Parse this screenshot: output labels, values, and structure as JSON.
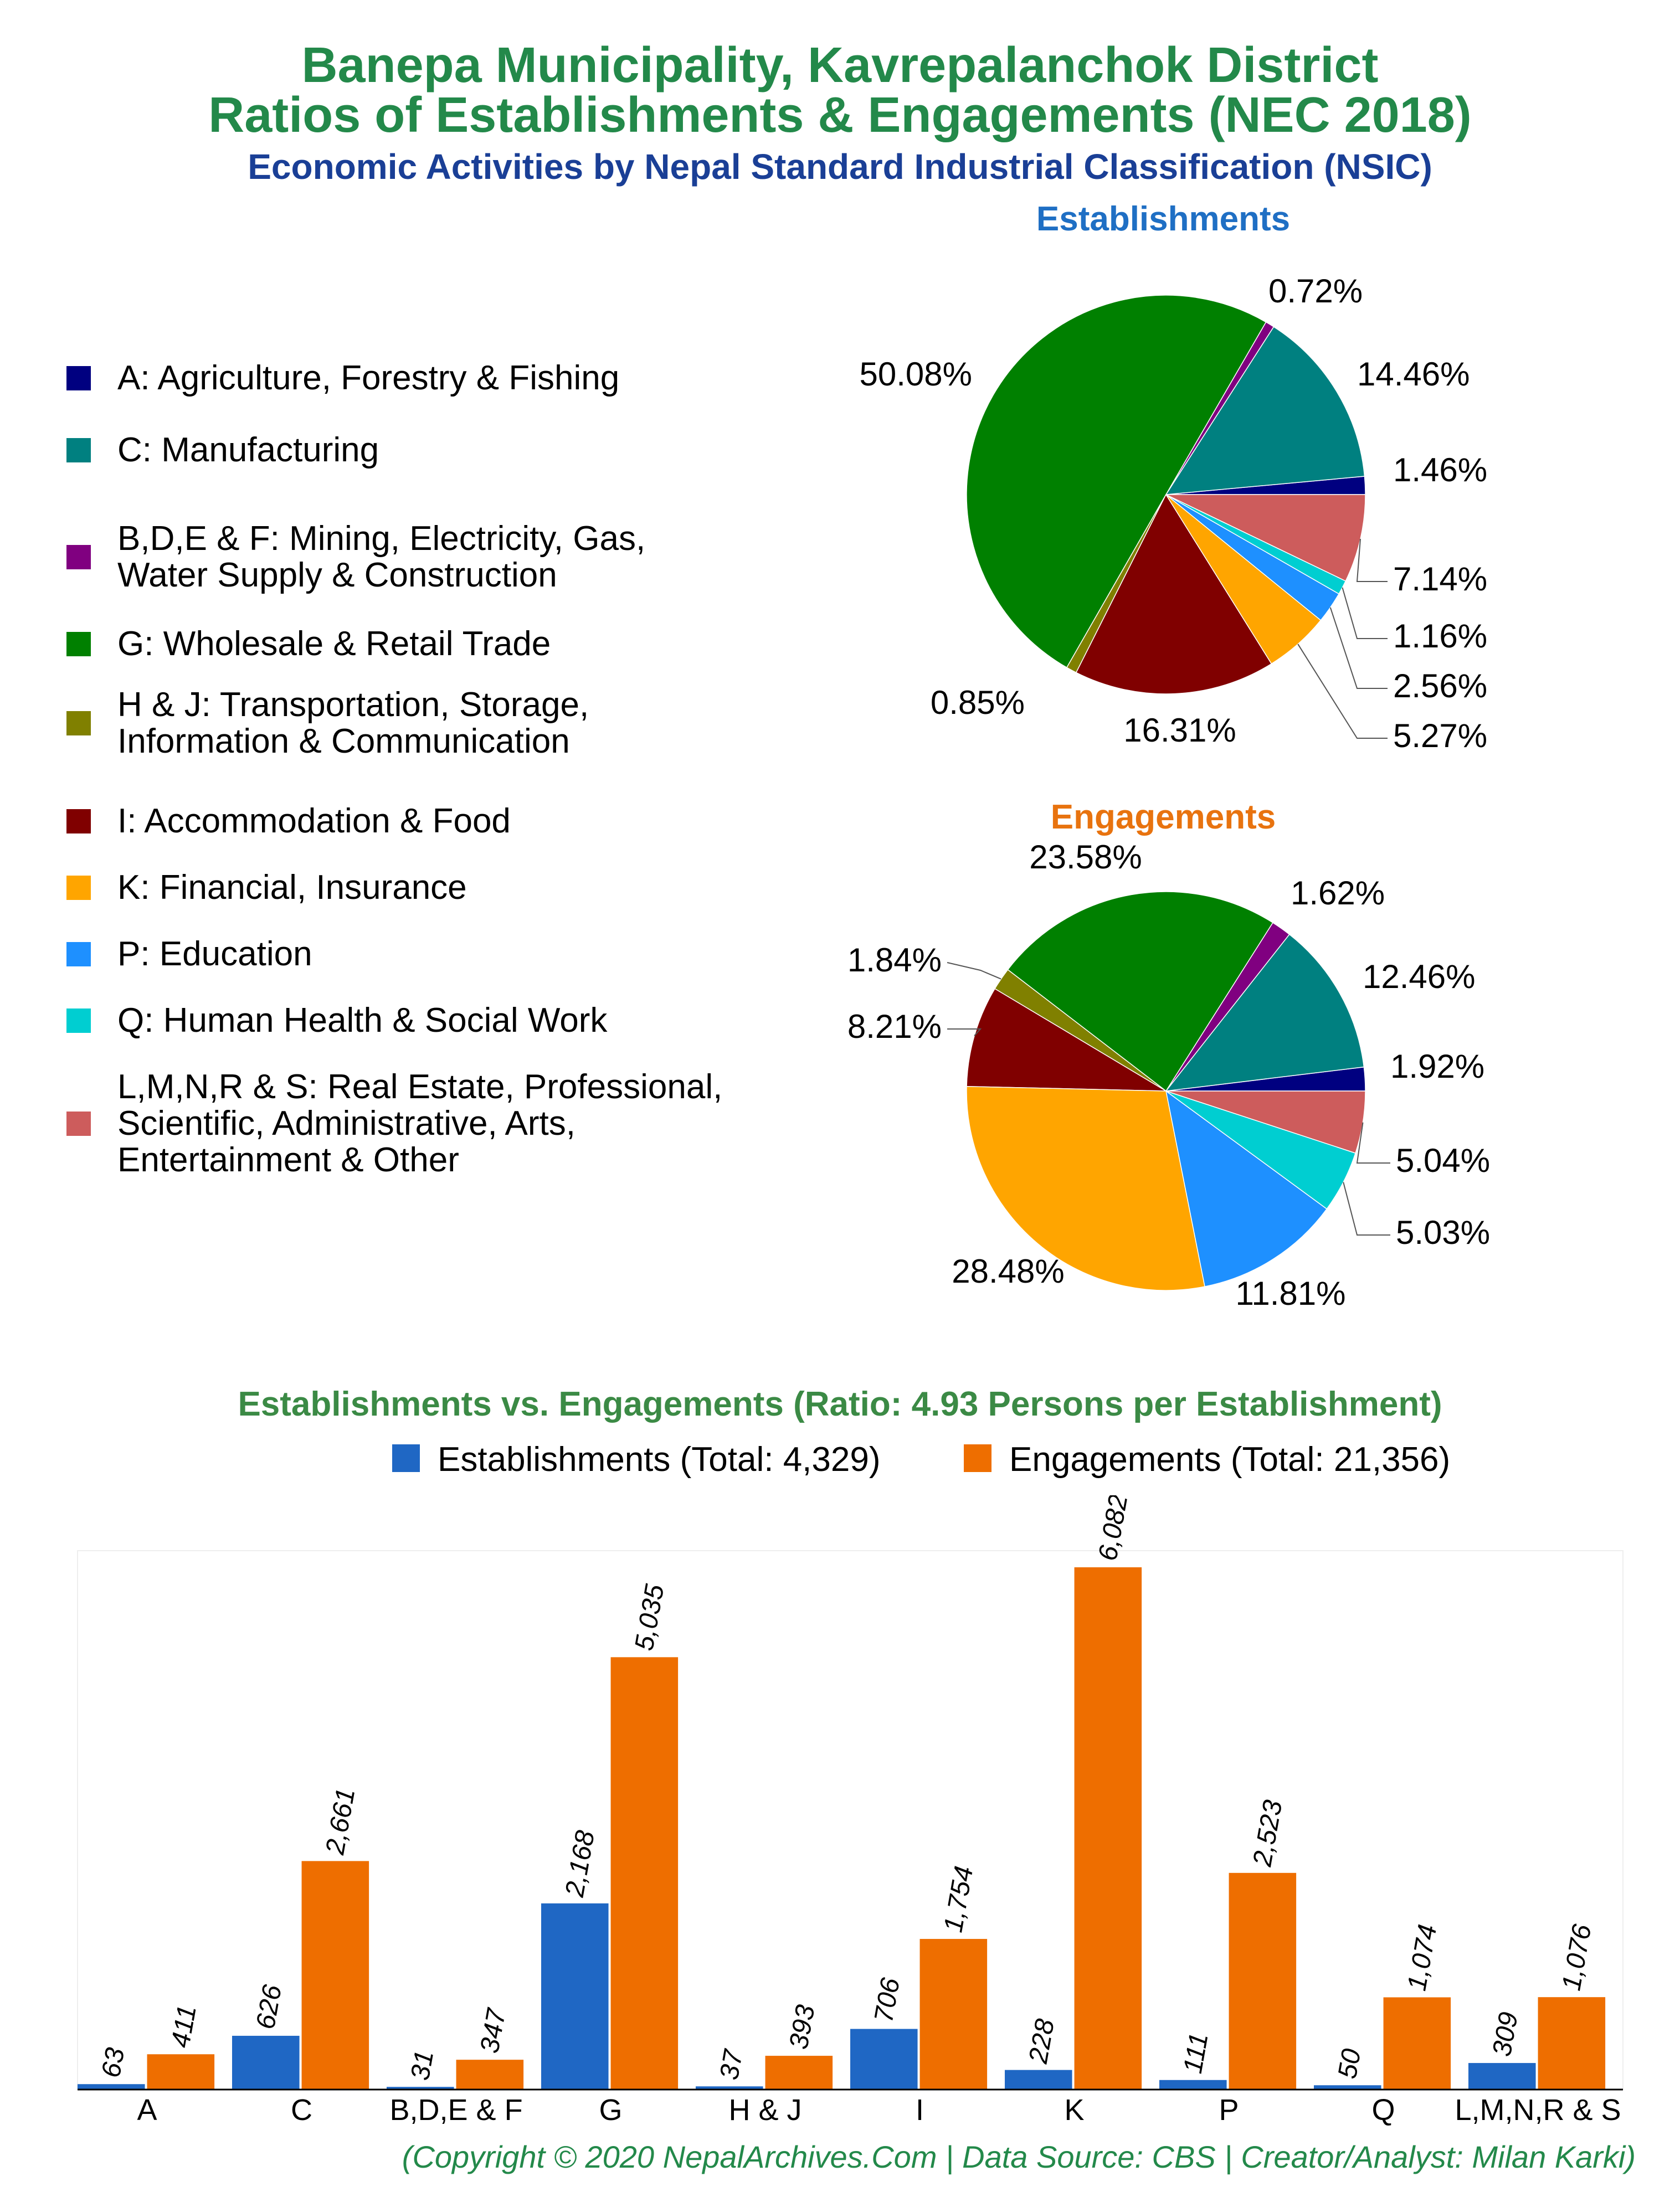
{
  "title_line1": "Banepa Municipality, Kavrepalanchok District",
  "title_line2": "Ratios of Establishments & Engagements (NEC 2018)",
  "subtitle": "Economic Activities by Nepal Standard Industrial Classification (NSIC)",
  "copyright": "(Copyright © 2020 NepalArchives.Com | Data Source: CBS | Creator/Analyst: Milan Karki)",
  "legend": [
    {
      "label": "A: Agriculture, Forestry & Fishing",
      "color": "#000080"
    },
    {
      "label": "C: Manufacturing",
      "color": "#008080"
    },
    {
      "label": "B,D,E & F: Mining, Electricity, Gas,\nWater Supply & Construction",
      "color": "#800080"
    },
    {
      "label": "G: Wholesale & Retail Trade",
      "color": "#008000"
    },
    {
      "label": "H & J: Transportation, Storage,\nInformation & Communication",
      "color": "#808000"
    },
    {
      "label": "I: Accommodation & Food",
      "color": "#800000"
    },
    {
      "label": "K: Financial, Insurance",
      "color": "#ffa500"
    },
    {
      "label": "P: Education",
      "color": "#1e90ff"
    },
    {
      "label": "Q: Human Health & Social Work",
      "color": "#00ced1"
    },
    {
      "label": "L,M,N,R & S: Real Estate, Professional,\nScientific, Administrative, Arts,\nEntertainment & Other",
      "color": "#cd5c5c"
    }
  ],
  "chart_data": [
    {
      "type": "pie",
      "title": "Establishments",
      "slices": [
        {
          "label": "A",
          "value": 1.46,
          "text": "1.46%",
          "color": "#000080"
        },
        {
          "label": "C",
          "value": 14.46,
          "text": "14.46%",
          "color": "#008080"
        },
        {
          "label": "B,D,E & F",
          "value": 0.72,
          "text": "0.72%",
          "color": "#800080"
        },
        {
          "label": "G",
          "value": 50.08,
          "text": "50.08%",
          "color": "#008000"
        },
        {
          "label": "H & J",
          "value": 0.85,
          "text": "0.85%",
          "color": "#808000"
        },
        {
          "label": "I",
          "value": 16.31,
          "text": "16.31%",
          "color": "#800000"
        },
        {
          "label": "K",
          "value": 5.27,
          "text": "5.27%",
          "color": "#ffa500"
        },
        {
          "label": "P",
          "value": 2.56,
          "text": "2.56%",
          "color": "#1e90ff"
        },
        {
          "label": "Q",
          "value": 1.16,
          "text": "1.16%",
          "color": "#00ced1"
        },
        {
          "label": "L,M,N,R & S",
          "value": 7.14,
          "text": "7.14%",
          "color": "#cd5c5c"
        }
      ]
    },
    {
      "type": "pie",
      "title": "Engagements",
      "slices": [
        {
          "label": "A",
          "value": 1.92,
          "text": "1.92%",
          "color": "#000080"
        },
        {
          "label": "C",
          "value": 12.46,
          "text": "12.46%",
          "color": "#008080"
        },
        {
          "label": "B,D,E & F",
          "value": 1.62,
          "text": "1.62%",
          "color": "#800080"
        },
        {
          "label": "G",
          "value": 23.58,
          "text": "23.58%",
          "color": "#008000"
        },
        {
          "label": "H & J",
          "value": 1.84,
          "text": "1.84%",
          "color": "#808000"
        },
        {
          "label": "I",
          "value": 8.21,
          "text": "8.21%",
          "color": "#800000"
        },
        {
          "label": "K",
          "value": 28.48,
          "text": "28.48%",
          "color": "#ffa500"
        },
        {
          "label": "P",
          "value": 11.81,
          "text": "11.81%",
          "color": "#1e90ff"
        },
        {
          "label": "Q",
          "value": 5.03,
          "text": "5.03%",
          "color": "#00ced1"
        },
        {
          "label": "L,M,N,R & S",
          "value": 5.04,
          "text": "5.04%",
          "color": "#cd5c5c"
        }
      ]
    },
    {
      "type": "bar",
      "title": "Establishments vs. Engagements (Ratio: 4.93 Persons per Establishment)",
      "categories": [
        "A",
        "C",
        "B,D,E & F",
        "G",
        "H & J",
        "I",
        "K",
        "P",
        "Q",
        "L,M,N,R & S"
      ],
      "series": [
        {
          "name": "Establishments (Total: 4,329)",
          "color": "#1f67c4",
          "values": [
            63,
            626,
            31,
            2168,
            37,
            706,
            228,
            111,
            50,
            309
          ],
          "labels": [
            "63",
            "626",
            "31",
            "2,168",
            "37",
            "706",
            "228",
            "111",
            "50",
            "309"
          ]
        },
        {
          "name": "Engagements (Total: 21,356)",
          "color": "#ee6e00",
          "values": [
            411,
            2661,
            347,
            5035,
            393,
            1754,
            6082,
            2523,
            1074,
            1076
          ],
          "labels": [
            "411",
            "2,661",
            "347",
            "5,035",
            "393",
            "1,754",
            "6,082",
            "2,523",
            "1,074",
            "1,076"
          ]
        }
      ],
      "ylim": [
        0,
        6082
      ]
    }
  ]
}
